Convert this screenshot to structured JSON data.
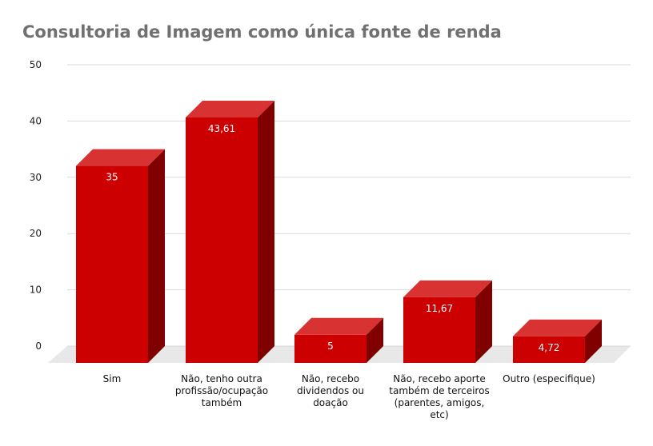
{
  "chart_data": {
    "type": "bar",
    "title": "Consultoria de Imagem como única fonte de renda",
    "categories": [
      [
        "Sim"
      ],
      [
        "Não, tenho outra",
        "profissão/ocupação",
        "também"
      ],
      [
        "Não, recebo",
        "dividendos ou",
        "doação"
      ],
      [
        "Não, recebo aporte",
        "também de terceiros",
        "(parentes, amigos,",
        "etc)"
      ],
      [
        "Outro (especifique)"
      ]
    ],
    "values": [
      35,
      43.61,
      5,
      11.67,
      4.72
    ],
    "value_labels": [
      "35",
      "43,61",
      "5",
      "11,67",
      "4,72"
    ],
    "yticks": [
      "0",
      "10",
      "20",
      "30",
      "40",
      "50"
    ],
    "ylim": [
      0,
      50
    ],
    "grid": true,
    "colors": {
      "bar_front": "#cc0000",
      "bar_top": "#d83232",
      "bar_side": "#800000",
      "floor": "#e8e8e8",
      "grid": "#d9d9d9"
    }
  }
}
